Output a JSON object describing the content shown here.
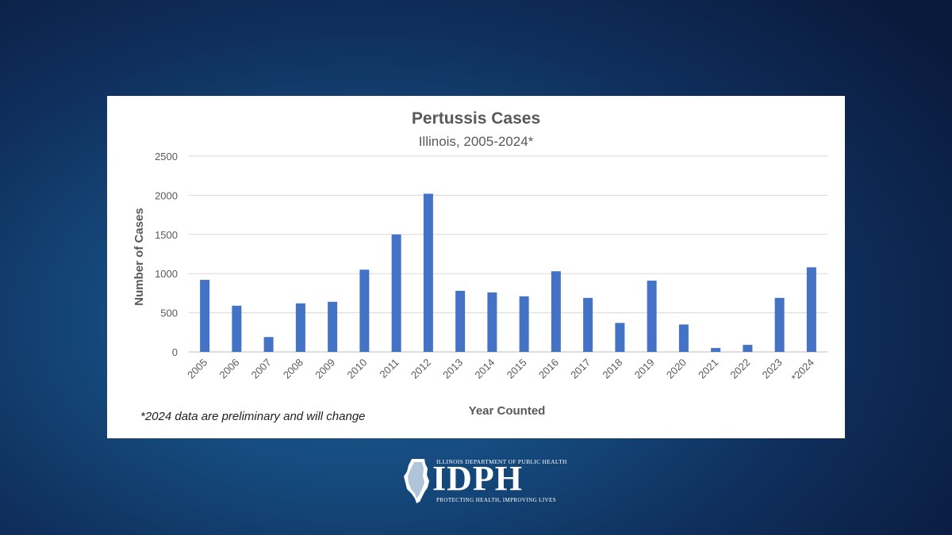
{
  "chart_data": {
    "type": "bar",
    "title": "Pertussis Cases",
    "subtitle": "Illinois, 2005-2024*",
    "xlabel": "Year Counted",
    "ylabel": "Number of Cases",
    "categories": [
      "2005",
      "2006",
      "2007",
      "2008",
      "2009",
      "2010",
      "2011",
      "2012",
      "2013",
      "2014",
      "2015",
      "2016",
      "2017",
      "2018",
      "2019",
      "2020",
      "2021",
      "2022",
      "2023",
      "*2024"
    ],
    "values": [
      920,
      590,
      190,
      620,
      640,
      1050,
      1500,
      2020,
      780,
      760,
      710,
      1030,
      690,
      370,
      910,
      350,
      50,
      90,
      690,
      1080
    ],
    "ylim": [
      0,
      2500
    ],
    "yticks": [
      0,
      500,
      1000,
      1500,
      2000,
      2500
    ],
    "grid": true,
    "bar_color": "#4472c4",
    "footnote": "*2024 data are preliminary and will change"
  },
  "logo": {
    "top_text": "Illinois Department of Public Health",
    "main_text": "IDPH",
    "tagline": "Protecting Health, Improving Lives"
  }
}
